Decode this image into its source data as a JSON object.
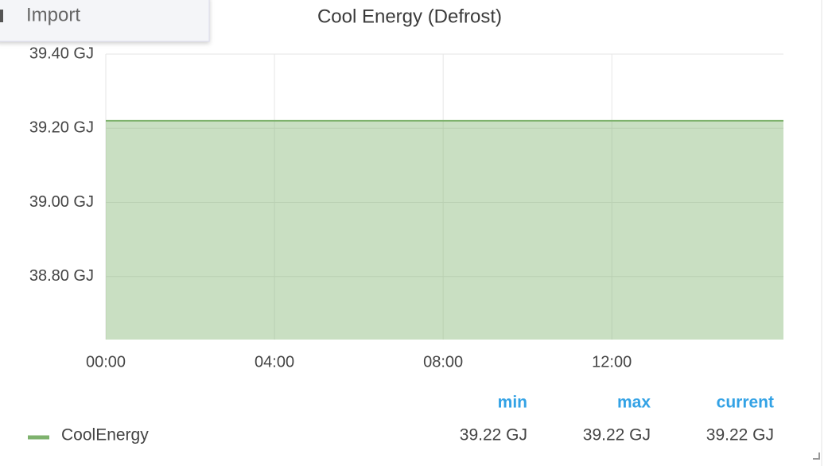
{
  "menu": {
    "item": "Import"
  },
  "chart_data": {
    "type": "line",
    "title": "Cool Energy (Defrost)",
    "series": [
      {
        "name": "CoolEnergy",
        "color": "#7eb26d",
        "fill": true,
        "x": [
          0,
          16.07
        ],
        "values": [
          39.22,
          39.22
        ],
        "stats": {
          "values": [
            39.22,
            39.22,
            39.22
          ],
          "value_labels": [
            "39.22 GJ",
            "39.22 GJ",
            "39.22 GJ"
          ]
        }
      }
    ],
    "legend_columns": [
      "min",
      "max",
      "current"
    ],
    "xlim": [
      0,
      16.07
    ],
    "xticks": [
      {
        "value": 0,
        "label": "00:00"
      },
      {
        "value": 4,
        "label": "04:00"
      },
      {
        "value": 8,
        "label": "08:00"
      },
      {
        "value": 12,
        "label": "12:00"
      }
    ],
    "ylim": [
      38.63,
      39.4
    ],
    "yticks": [
      {
        "value": 38.8,
        "label": "38.80 GJ"
      },
      {
        "value": 39.0,
        "label": "39.00 GJ"
      },
      {
        "value": 39.2,
        "label": "39.20 GJ"
      },
      {
        "value": 39.4,
        "label": "39.40 GJ"
      }
    ],
    "grid": true
  }
}
